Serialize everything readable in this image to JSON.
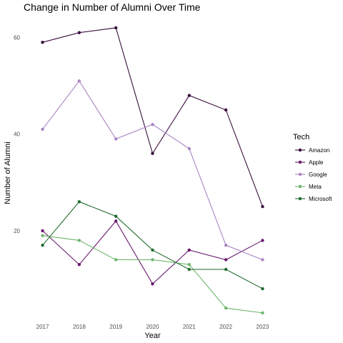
{
  "chart_data": {
    "type": "line",
    "title": "Change in Number of Alumni Over Time",
    "xlabel": "Year",
    "ylabel": "Number of Alumni",
    "x": [
      2017,
      2018,
      2019,
      2020,
      2021,
      2022,
      2023
    ],
    "x_tick_labels": [
      "2017",
      "2018",
      "2019",
      "2020",
      "2021",
      "2022",
      "2023"
    ],
    "y_ticks": [
      20,
      40,
      60
    ],
    "y_tick_labels": [
      "20",
      "40",
      "60"
    ],
    "ylim": [
      1.5,
      64.5
    ],
    "grid": false,
    "legend": {
      "title": "Tech",
      "placement": "right"
    },
    "series": [
      {
        "name": "Amazon",
        "color": "#3b0f3f",
        "values": [
          59,
          61,
          62,
          36,
          48,
          45,
          25
        ]
      },
      {
        "name": "Apple",
        "color": "#6a1b6e",
        "values": [
          20,
          13,
          22,
          9,
          16,
          14,
          18
        ]
      },
      {
        "name": "Google",
        "color": "#a985c2",
        "values": [
          41,
          51,
          39,
          42,
          37,
          17,
          14
        ]
      },
      {
        "name": "Meta",
        "color": "#6db56d",
        "values": [
          19,
          18,
          14,
          14,
          13,
          4,
          3
        ]
      },
      {
        "name": "Microsoft",
        "color": "#1e6b2e",
        "values": [
          17,
          26,
          23,
          16,
          12,
          12,
          8
        ]
      }
    ]
  }
}
